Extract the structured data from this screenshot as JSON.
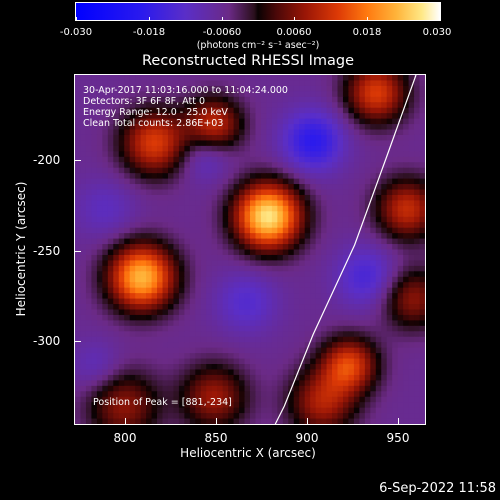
{
  "colorbar": {
    "ticks": [
      "-0.030",
      "-0.018",
      "-0.0060",
      "0.0060",
      "0.018",
      "0.030"
    ],
    "units": "(photons cm⁻² s⁻¹ asec⁻²)"
  },
  "plot": {
    "title": "Reconstructed RHESSI Image",
    "info": {
      "time": "30-Apr-2017 11:03:16.000 to 11:04:24.000",
      "detectors": "Detectors: 3F 6F 8F, Att 0",
      "energy": "Energy Range: 12.0 - 25.0 keV",
      "clean": "Clean    Total counts: 2.86E+03"
    },
    "peak": "Position of Peak = [881,-234]",
    "xlabel": "Heliocentric X (arcsec)",
    "ylabel": "Heliocentric Y (arcsec)",
    "xticks": [
      "800",
      "850",
      "900",
      "950"
    ],
    "yticks": [
      "-200",
      "-250",
      "-300"
    ]
  },
  "footer": {
    "timestamp": "6-Sep-2022 11:58"
  },
  "chart_data": {
    "type": "heatmap",
    "title": "Reconstructed RHESSI Image",
    "xlabel": "Heliocentric X (arcsec)",
    "ylabel": "Heliocentric Y (arcsec)",
    "xlim": [
      773,
      967
    ],
    "ylim": [
      -350,
      -155
    ],
    "colorbar_range": [
      -0.03,
      0.03
    ],
    "colormap": "blue-purple-black-red-yellow-white",
    "peak": [
      881,
      -234
    ],
    "sources": [
      {
        "x": 880,
        "y": -234,
        "v": 0.03,
        "s": 13
      },
      {
        "x": 810,
        "y": -268,
        "v": 0.026,
        "s": 13
      },
      {
        "x": 817,
        "y": -193,
        "v": 0.016,
        "s": 13
      },
      {
        "x": 850,
        "y": -183,
        "v": 0.014,
        "s": 11
      },
      {
        "x": 940,
        "y": -165,
        "v": 0.016,
        "s": 12
      },
      {
        "x": 957,
        "y": -230,
        "v": 0.014,
        "s": 12
      },
      {
        "x": 960,
        "y": -280,
        "v": 0.01,
        "s": 12
      },
      {
        "x": 925,
        "y": -317,
        "v": 0.016,
        "s": 11
      },
      {
        "x": 800,
        "y": -340,
        "v": 0.01,
        "s": 14
      },
      {
        "x": 850,
        "y": -335,
        "v": 0.011,
        "s": 13
      },
      {
        "x": 910,
        "y": -338,
        "v": 0.012,
        "s": 13
      },
      {
        "x": 905,
        "y": -192,
        "v": -0.016,
        "s": 12
      },
      {
        "x": 845,
        "y": -200,
        "v": -0.01,
        "s": 10
      },
      {
        "x": 935,
        "y": -268,
        "v": -0.012,
        "s": 12
      },
      {
        "x": 868,
        "y": -282,
        "v": -0.01,
        "s": 12
      },
      {
        "x": 790,
        "y": -230,
        "v": -0.008,
        "s": 12
      },
      {
        "x": 785,
        "y": -318,
        "v": -0.008,
        "s": 10
      }
    ],
    "limb": [
      [
        962,
        -155
      ],
      [
        946,
        -200
      ],
      [
        928,
        -250
      ],
      [
        905,
        -300
      ],
      [
        889,
        -340
      ],
      [
        884,
        -350
      ]
    ],
    "background": -0.006
  }
}
